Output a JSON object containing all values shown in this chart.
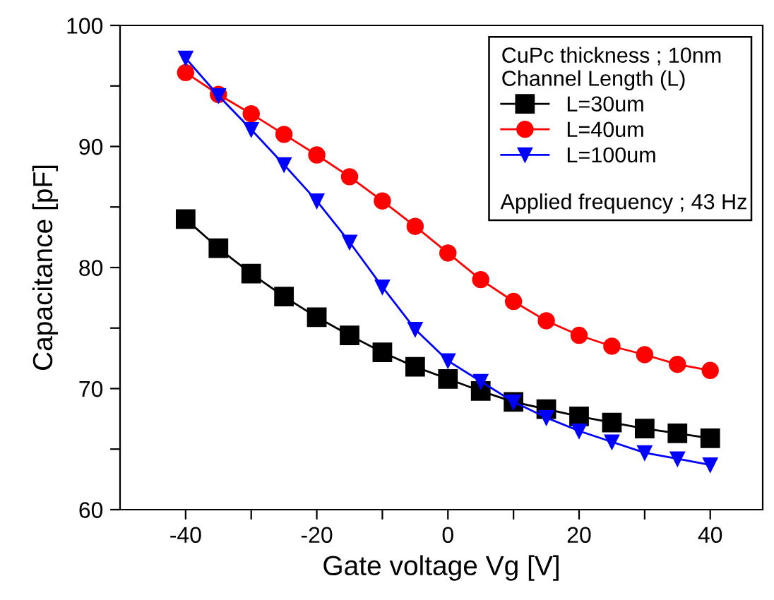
{
  "chart_data": {
    "type": "line",
    "xlabel": "Gate voltage Vg [V]",
    "ylabel": "Capacitance [pF]",
    "legend_title": "CuPc thickness ; 10nm\nChannel Length (L)",
    "annotations": [
      "Applied frequency ; 43 Hz"
    ],
    "x": [
      -40,
      -35,
      -30,
      -25,
      -20,
      -15,
      -10,
      -5,
      0,
      5,
      10,
      15,
      20,
      25,
      30,
      35,
      40
    ],
    "series": [
      {
        "name": "L=30um",
        "color": "#000000",
        "marker": "square",
        "values": [
          84.0,
          81.6,
          79.5,
          77.6,
          75.9,
          74.4,
          73.0,
          71.8,
          70.8,
          69.8,
          68.9,
          68.3,
          67.7,
          67.2,
          66.7,
          66.3,
          65.9
        ]
      },
      {
        "name": "L=40um",
        "color": "#ff0000",
        "marker": "circle",
        "values": [
          96.1,
          94.3,
          92.7,
          91.0,
          89.3,
          87.5,
          85.5,
          83.4,
          81.2,
          79.0,
          77.2,
          75.6,
          74.4,
          73.5,
          72.8,
          72.0,
          71.5
        ]
      },
      {
        "name": "L=100um",
        "color": "#0000ff",
        "marker": "triangle",
        "values": [
          97.3,
          94.2,
          91.4,
          88.5,
          85.5,
          82.1,
          78.4,
          74.9,
          72.3,
          70.6,
          68.9,
          67.6,
          66.5,
          65.6,
          64.7,
          64.2,
          63.7
        ]
      }
    ],
    "xlim": [
      -50,
      48
    ],
    "ylim": [
      60,
      100
    ],
    "xticks": [
      -40,
      {
        "value": -30,
        "label": null
      },
      -20,
      {
        "value": -10,
        "label": null
      },
      0,
      {
        "value": 10,
        "label": null
      },
      20,
      {
        "value": 30,
        "label": null
      },
      40
    ],
    "yticks": [
      60,
      {
        "value": 65,
        "label": null
      },
      70,
      {
        "value": 75,
        "label": null
      },
      80,
      {
        "value": 85,
        "label": null
      },
      90,
      {
        "value": 95,
        "label": null
      },
      100
    ],
    "grid": false,
    "legend": "top right",
    "line_style": "solid"
  }
}
